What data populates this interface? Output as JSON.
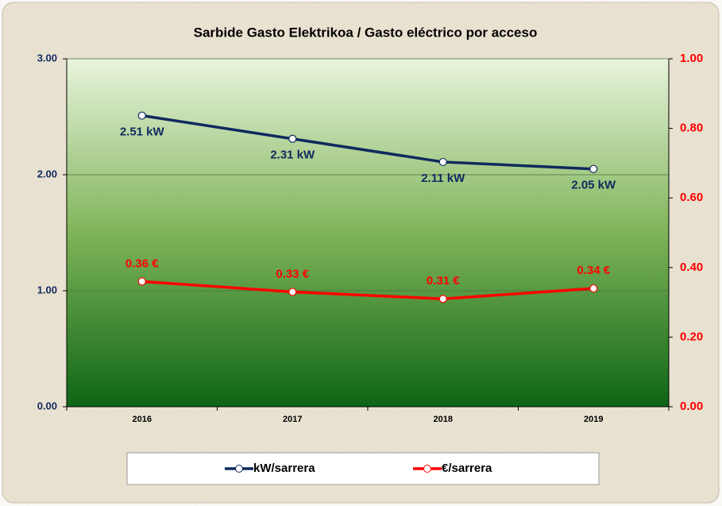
{
  "chart_data": {
    "type": "line",
    "title": "Sarbide Gasto Elektrikoa / Gasto eléctrico por acceso",
    "categories": [
      "2016",
      "2017",
      "2018",
      "2019"
    ],
    "series": [
      {
        "name": "kW/sarrera",
        "color": "#0f2a5e",
        "values": [
          2.51,
          2.31,
          2.11,
          2.05
        ],
        "value_labels": [
          "2.51 kW",
          "2.31 kW",
          "2.11 kW",
          "2.05 kW"
        ]
      },
      {
        "name": "€/sarrera",
        "color": "#ff0000",
        "axis": "y2",
        "values": [
          0.36,
          0.33,
          0.31,
          0.34
        ],
        "value_labels": [
          "0.36 €",
          "0.33 €",
          "0.31 €",
          "0.34 €"
        ]
      }
    ],
    "ylim": [
      0,
      3
    ],
    "yticks": [
      {
        "value": 0,
        "label": "0.00"
      },
      {
        "value": 1,
        "label": "1.00"
      },
      {
        "value": 2,
        "label": "2.00"
      },
      {
        "value": 3,
        "label": "3.00"
      }
    ],
    "y2lim": [
      0,
      1
    ],
    "y2ticks": [
      {
        "value": 0,
        "label": "0.00"
      },
      {
        "value": 0.2,
        "label": "0.20"
      },
      {
        "value": 0.4,
        "label": "0.40"
      },
      {
        "value": 0.6,
        "label": "0.60"
      },
      {
        "value": 0.8,
        "label": "0.80"
      },
      {
        "value": 1,
        "label": "1.00"
      }
    ],
    "grid": true,
    "legend": "bottom"
  }
}
